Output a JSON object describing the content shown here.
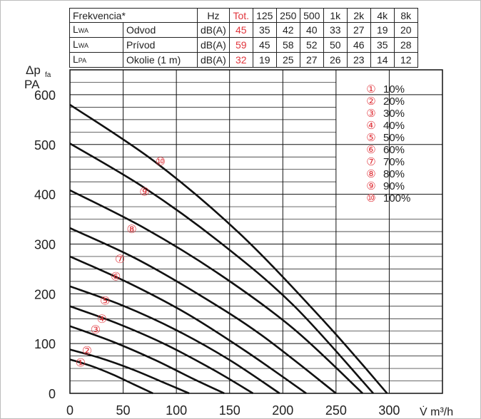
{
  "table": {
    "header": {
      "label": "Frekvencia*",
      "unit": "Hz",
      "tot": "Tot.",
      "freqs": [
        "125",
        "250",
        "500",
        "1k",
        "2k",
        "4k",
        "8k"
      ]
    },
    "rows": [
      {
        "symbol": "L",
        "sub": "WA",
        "name": "Odvod",
        "unit": "dB(A)",
        "tot": "45",
        "values": [
          "35",
          "42",
          "40",
          "33",
          "27",
          "19",
          "20"
        ]
      },
      {
        "symbol": "L",
        "sub": "WA",
        "name": "Prívod",
        "unit": "dB(A)",
        "tot": "59",
        "values": [
          "45",
          "58",
          "52",
          "50",
          "46",
          "35",
          "28"
        ]
      },
      {
        "symbol": "L",
        "sub": "PA",
        "name": "Okolie (1 m)",
        "unit": "dB(A)",
        "tot": "32",
        "values": [
          "19",
          "25",
          "27",
          "26",
          "23",
          "14",
          "12"
        ]
      }
    ]
  },
  "chart_data": {
    "type": "line",
    "ylabel_main": "Δp",
    "ylabel_sub": "fa",
    "ylabel_unit": "PA",
    "xlabel": "V̇ m³/h",
    "xlim": [
      0,
      350
    ],
    "ylim": [
      0,
      650
    ],
    "xticks": [
      "0",
      "50",
      "100",
      "150",
      "200",
      "250",
      "300"
    ],
    "yticks": [
      "0",
      "100",
      "200",
      "300",
      "400",
      "500",
      "600"
    ],
    "grid": true,
    "marker_color": "#e0353c",
    "series": [
      {
        "marker": "①",
        "legend": "10%",
        "x": [
          0,
          20,
          40,
          60,
          78
        ],
        "y": [
          68,
          55,
          38,
          18,
          0
        ]
      },
      {
        "marker": "②",
        "legend": "20%",
        "x": [
          0,
          30,
          60,
          90,
          112
        ],
        "y": [
          88,
          70,
          47,
          20,
          0
        ]
      },
      {
        "marker": "③",
        "legend": "30%",
        "x": [
          0,
          40,
          80,
          115,
          145
        ],
        "y": [
          135,
          104,
          67,
          30,
          0
        ]
      },
      {
        "marker": "④",
        "legend": "40%",
        "x": [
          0,
          45,
          90,
          135,
          172
        ],
        "y": [
          175,
          140,
          98,
          47,
          0
        ]
      },
      {
        "marker": "⑤",
        "legend": "50%",
        "x": [
          0,
          50,
          100,
          150,
          197
        ],
        "y": [
          215,
          176,
          127,
          67,
          0
        ]
      },
      {
        "marker": "⑥",
        "legend": "60%",
        "x": [
          0,
          55,
          110,
          165,
          222
        ],
        "y": [
          275,
          222,
          160,
          85,
          0
        ]
      },
      {
        "marker": "⑦",
        "legend": "70%",
        "x": [
          0,
          60,
          120,
          180,
          250
        ],
        "y": [
          332,
          273,
          200,
          117,
          0
        ]
      },
      {
        "marker": "⑧",
        "legend": "80%",
        "x": [
          0,
          70,
          140,
          210,
          275
        ],
        "y": [
          408,
          332,
          240,
          130,
          0
        ]
      },
      {
        "marker": "⑨",
        "legend": "90%",
        "x": [
          0,
          70,
          140,
          210,
          285
        ],
        "y": [
          502,
          413,
          305,
          177,
          0
        ]
      },
      {
        "marker": "⑩",
        "legend": "100%",
        "x": [
          0,
          80,
          160,
          240,
          298
        ],
        "y": [
          580,
          465,
          320,
          142,
          0
        ]
      }
    ]
  }
}
